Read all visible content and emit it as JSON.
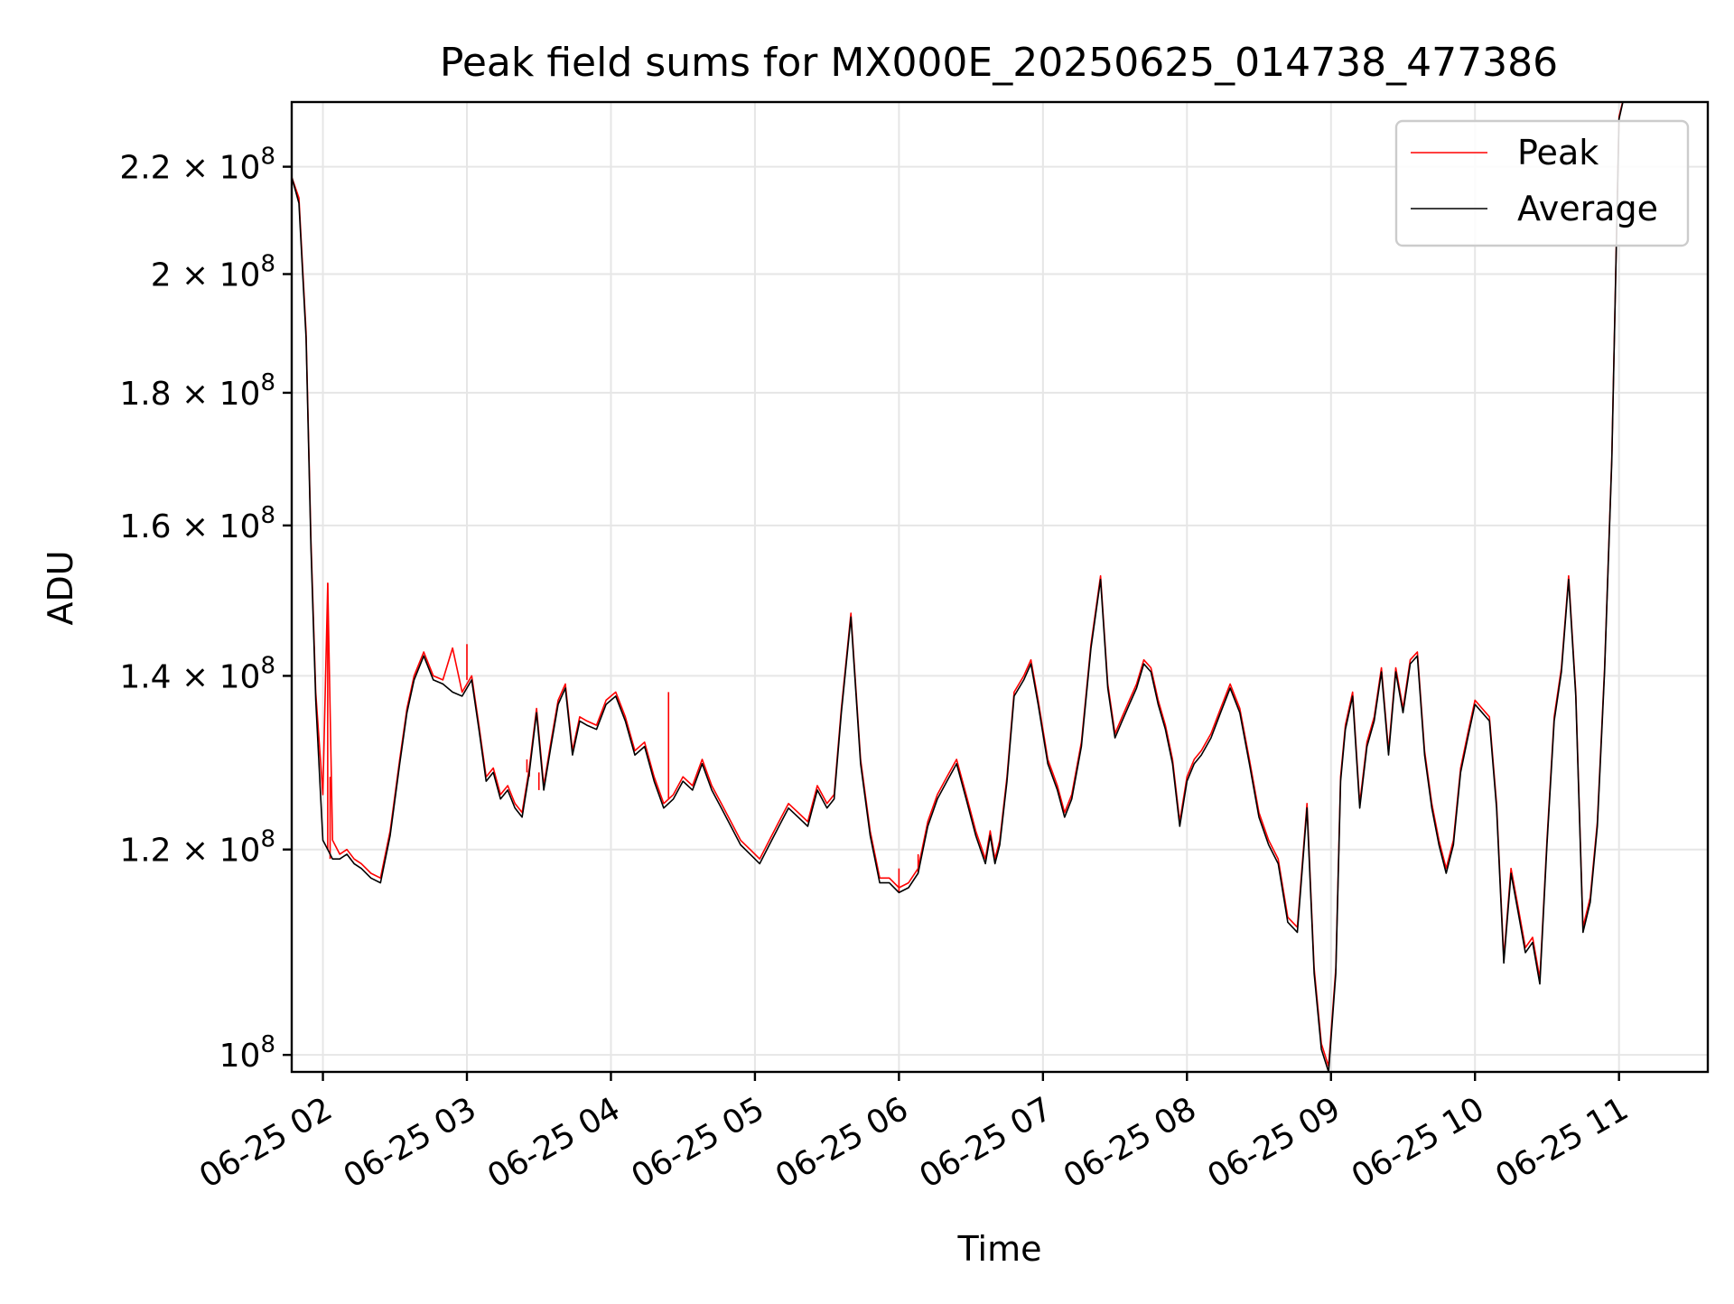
{
  "chart_data": {
    "type": "line",
    "title": "Peak field sums for MX000E_20250625_014738_477386",
    "xlabel": "Time",
    "ylabel": "ADU",
    "yscale": "log",
    "grid": true,
    "legend_position": "top-right",
    "xlim": [
      "2025-06-25 01:47",
      "2025-06-25 11:37"
    ],
    "ylim": [
      98500000,
      233000000
    ],
    "x_ticks": [
      {
        "value": "2025-06-25 02:00",
        "label": "06-25 02"
      },
      {
        "value": "2025-06-25 03:00",
        "label": "06-25 03"
      },
      {
        "value": "2025-06-25 04:00",
        "label": "06-25 04"
      },
      {
        "value": "2025-06-25 05:00",
        "label": "06-25 05"
      },
      {
        "value": "2025-06-25 06:00",
        "label": "06-25 06"
      },
      {
        "value": "2025-06-25 07:00",
        "label": "06-25 07"
      },
      {
        "value": "2025-06-25 08:00",
        "label": "06-25 08"
      },
      {
        "value": "2025-06-25 09:00",
        "label": "06-25 09"
      },
      {
        "value": "2025-06-25 10:00",
        "label": "06-25 10"
      },
      {
        "value": "2025-06-25 11:00",
        "label": "06-25 11"
      }
    ],
    "y_ticks": [
      {
        "value": 100000000,
        "mant": "",
        "exp": "8"
      },
      {
        "value": 120000000,
        "mant": "1.2",
        "exp": "8"
      },
      {
        "value": 140000000,
        "mant": "1.4",
        "exp": "8"
      },
      {
        "value": 160000000,
        "mant": "1.6",
        "exp": "8"
      },
      {
        "value": 180000000,
        "mant": "1.8",
        "exp": "8"
      },
      {
        "value": 200000000,
        "mant": "2",
        "exp": "8"
      },
      {
        "value": 220000000,
        "mant": "2.2",
        "exp": "8"
      }
    ],
    "series": [
      {
        "name": "Peak",
        "color": "#ff0000"
      },
      {
        "name": "Average",
        "color": "#000000"
      }
    ],
    "x": [
      "2025-06-25 01:47",
      "2025-06-25 01:50",
      "2025-06-25 01:53",
      "2025-06-25 01:55",
      "2025-06-25 01:57",
      "2025-06-25 02:00",
      "2025-06-25 02:02",
      "2025-06-25 02:04",
      "2025-06-25 02:07",
      "2025-06-25 02:10",
      "2025-06-25 02:13",
      "2025-06-25 02:16",
      "2025-06-25 02:20",
      "2025-06-25 02:24",
      "2025-06-25 02:28",
      "2025-06-25 02:32",
      "2025-06-25 02:35",
      "2025-06-25 02:38",
      "2025-06-25 02:42",
      "2025-06-25 02:46",
      "2025-06-25 02:50",
      "2025-06-25 02:54",
      "2025-06-25 02:58",
      "2025-06-25 03:02",
      "2025-06-25 03:05",
      "2025-06-25 03:08",
      "2025-06-25 03:11",
      "2025-06-25 03:14",
      "2025-06-25 03:17",
      "2025-06-25 03:20",
      "2025-06-25 03:23",
      "2025-06-25 03:26",
      "2025-06-25 03:29",
      "2025-06-25 03:32",
      "2025-06-25 03:35",
      "2025-06-25 03:38",
      "2025-06-25 03:41",
      "2025-06-25 03:44",
      "2025-06-25 03:47",
      "2025-06-25 03:50",
      "2025-06-25 03:54",
      "2025-06-25 03:58",
      "2025-06-25 04:02",
      "2025-06-25 04:06",
      "2025-06-25 04:10",
      "2025-06-25 04:14",
      "2025-06-25 04:18",
      "2025-06-25 04:22",
      "2025-06-25 04:26",
      "2025-06-25 04:30",
      "2025-06-25 04:34",
      "2025-06-25 04:38",
      "2025-06-25 04:42",
      "2025-06-25 04:46",
      "2025-06-25 04:50",
      "2025-06-25 04:54",
      "2025-06-25 04:58",
      "2025-06-25 05:02",
      "2025-06-25 05:06",
      "2025-06-25 05:10",
      "2025-06-25 05:14",
      "2025-06-25 05:18",
      "2025-06-25 05:22",
      "2025-06-25 05:26",
      "2025-06-25 05:30",
      "2025-06-25 05:33",
      "2025-06-25 05:36",
      "2025-06-25 05:40",
      "2025-06-25 05:44",
      "2025-06-25 05:48",
      "2025-06-25 05:52",
      "2025-06-25 05:56",
      "2025-06-25 06:00",
      "2025-06-25 06:04",
      "2025-06-25 06:08",
      "2025-06-25 06:12",
      "2025-06-25 06:16",
      "2025-06-25 06:20",
      "2025-06-25 06:24",
      "2025-06-25 06:28",
      "2025-06-25 06:32",
      "2025-06-25 06:36",
      "2025-06-25 06:38",
      "2025-06-25 06:40",
      "2025-06-25 06:42",
      "2025-06-25 06:45",
      "2025-06-25 06:48",
      "2025-06-25 06:52",
      "2025-06-25 06:55",
      "2025-06-25 06:58",
      "2025-06-25 07:02",
      "2025-06-25 07:06",
      "2025-06-25 07:09",
      "2025-06-25 07:12",
      "2025-06-25 07:16",
      "2025-06-25 07:20",
      "2025-06-25 07:24",
      "2025-06-25 07:27",
      "2025-06-25 07:30",
      "2025-06-25 07:33",
      "2025-06-25 07:36",
      "2025-06-25 07:39",
      "2025-06-25 07:42",
      "2025-06-25 07:45",
      "2025-06-25 07:48",
      "2025-06-25 07:51",
      "2025-06-25 07:54",
      "2025-06-25 07:57",
      "2025-06-25 08:00",
      "2025-06-25 08:03",
      "2025-06-25 08:06",
      "2025-06-25 08:10",
      "2025-06-25 08:14",
      "2025-06-25 08:18",
      "2025-06-25 08:22",
      "2025-06-25 08:26",
      "2025-06-25 08:30",
      "2025-06-25 08:34",
      "2025-06-25 08:38",
      "2025-06-25 08:42",
      "2025-06-25 08:46",
      "2025-06-25 08:50",
      "2025-06-25 08:53",
      "2025-06-25 08:56",
      "2025-06-25 08:59",
      "2025-06-25 09:02",
      "2025-06-25 09:04",
      "2025-06-25 09:06",
      "2025-06-25 09:09",
      "2025-06-25 09:12",
      "2025-06-25 09:15",
      "2025-06-25 09:18",
      "2025-06-25 09:21",
      "2025-06-25 09:24",
      "2025-06-25 09:27",
      "2025-06-25 09:30",
      "2025-06-25 09:33",
      "2025-06-25 09:36",
      "2025-06-25 09:39",
      "2025-06-25 09:42",
      "2025-06-25 09:45",
      "2025-06-25 09:48",
      "2025-06-25 09:51",
      "2025-06-25 09:54",
      "2025-06-25 09:57",
      "2025-06-25 10:00",
      "2025-06-25 10:03",
      "2025-06-25 10:06",
      "2025-06-25 10:09",
      "2025-06-25 10:12",
      "2025-06-25 10:15",
      "2025-06-25 10:18",
      "2025-06-25 10:21",
      "2025-06-25 10:24",
      "2025-06-25 10:27",
      "2025-06-25 10:30",
      "2025-06-25 10:33",
      "2025-06-25 10:36",
      "2025-06-25 10:39",
      "2025-06-25 10:42",
      "2025-06-25 10:45",
      "2025-06-25 10:48",
      "2025-06-25 10:51",
      "2025-06-25 10:54",
      "2025-06-25 10:57",
      "2025-06-25 11:00",
      "2025-06-25 11:03",
      "2025-06-25 11:06",
      "2025-06-25 11:09",
      "2025-06-25 11:12",
      "2025-06-25 11:15",
      "2025-06-25 11:18",
      "2025-06-25 11:21",
      "2025-06-25 11:24",
      "2025-06-25 11:27",
      "2025-06-25 11:30",
      "2025-06-25 11:33",
      "2025-06-25 11:37"
    ],
    "peak_values": [
      218000000,
      214000000,
      190000000,
      158000000,
      138000000,
      126000000,
      152000000,
      121000000,
      119500000,
      120000000,
      119000000,
      118500000,
      117500000,
      117000000,
      122000000,
      130000000,
      136000000,
      140000000,
      143000000,
      140000000,
      139500000,
      143500000,
      138000000,
      140000000,
      134000000,
      128000000,
      129000000,
      126000000,
      127000000,
      125000000,
      124000000,
      129000000,
      136000000,
      127000000,
      132000000,
      137000000,
      139000000,
      131000000,
      135000000,
      134500000,
      134000000,
      137000000,
      138000000,
      135000000,
      131000000,
      132000000,
      128000000,
      125000000,
      126000000,
      128000000,
      127000000,
      130000000,
      127000000,
      125000000,
      123000000,
      121000000,
      120000000,
      119000000,
      121000000,
      123000000,
      125000000,
      124000000,
      123000000,
      127000000,
      125000000,
      126000000,
      136000000,
      148000000,
      130000000,
      122000000,
      117000000,
      117000000,
      116000000,
      116500000,
      118000000,
      123000000,
      126000000,
      128000000,
      130000000,
      126000000,
      122000000,
      119000000,
      122000000,
      119000000,
      121000000,
      128000000,
      138000000,
      140000000,
      142000000,
      137000000,
      130000000,
      127000000,
      124000000,
      126000000,
      132000000,
      144000000,
      153000000,
      139000000,
      133000000,
      135000000,
      137000000,
      139000000,
      142000000,
      141000000,
      137000000,
      134000000,
      130000000,
      123000000,
      128000000,
      130000000,
      131000000,
      133000000,
      136000000,
      139000000,
      136000000,
      130000000,
      124000000,
      121000000,
      119000000,
      113000000,
      112000000,
      125000000,
      108000000,
      101000000,
      99000000,
      108000000,
      128000000,
      134000000,
      138000000,
      125000000,
      132000000,
      135000000,
      141000000,
      131000000,
      141000000,
      136000000,
      142000000,
      143000000,
      131000000,
      125000000,
      121000000,
      118000000,
      121000000,
      129000000,
      133000000,
      137000000,
      136000000,
      135000000,
      125000000,
      109000000,
      118000000,
      114000000,
      110000000,
      111000000,
      107000000,
      121000000,
      135000000,
      141000000,
      153000000,
      138000000,
      112000000,
      115000000,
      123000000,
      141000000,
      170000000,
      230000000,
      236000000
    ],
    "average_values": [
      218000000,
      213000000,
      189000000,
      157000000,
      137000000,
      121000000,
      120000000,
      119000000,
      119000000,
      119500000,
      118500000,
      118000000,
      117000000,
      116500000,
      121500000,
      129500000,
      135500000,
      139500000,
      142500000,
      139500000,
      139000000,
      138000000,
      137500000,
      139500000,
      133500000,
      127500000,
      128500000,
      125500000,
      126500000,
      124500000,
      123500000,
      128500000,
      135500000,
      126500000,
      131500000,
      136500000,
      138500000,
      130500000,
      134500000,
      134000000,
      133500000,
      136500000,
      137500000,
      134500000,
      130500000,
      131500000,
      127500000,
      124500000,
      125500000,
      127500000,
      126500000,
      129500000,
      126500000,
      124500000,
      122500000,
      120500000,
      119500000,
      118500000,
      120500000,
      122500000,
      124500000,
      123500000,
      122500000,
      126500000,
      124500000,
      125500000,
      135500000,
      147500000,
      129500000,
      121500000,
      116500000,
      116500000,
      115500000,
      116000000,
      117500000,
      122500000,
      125500000,
      127500000,
      129500000,
      125500000,
      121500000,
      118500000,
      121500000,
      118500000,
      120500000,
      127500000,
      137500000,
      139500000,
      141500000,
      136500000,
      129500000,
      126500000,
      123500000,
      125500000,
      131500000,
      143500000,
      152500000,
      138500000,
      132500000,
      134500000,
      136500000,
      138500000,
      141500000,
      140500000,
      136500000,
      133500000,
      129500000,
      122500000,
      127500000,
      129500000,
      130500000,
      132500000,
      135500000,
      138500000,
      135500000,
      129500000,
      123500000,
      120500000,
      118500000,
      112500000,
      111500000,
      124500000,
      107500000,
      100500000,
      98500000,
      107500000,
      127500000,
      133500000,
      137500000,
      124500000,
      131500000,
      134500000,
      140500000,
      130500000,
      140500000,
      135500000,
      141500000,
      142500000,
      130500000,
      124500000,
      120500000,
      117500000,
      120500000,
      128500000,
      132500000,
      136500000,
      135500000,
      134500000,
      124500000,
      108500000,
      117500000,
      113500000,
      109500000,
      110500000,
      106500000,
      120500000,
      134500000,
      140500000,
      152500000,
      137500000,
      111500000,
      114500000,
      122500000,
      140500000,
      169500000,
      229500000,
      236000000
    ],
    "spikes": [
      {
        "x": "2025-06-25 02:02",
        "value": 152000000
      },
      {
        "x": "2025-06-25 02:03",
        "value": 128000000
      },
      {
        "x": "2025-06-25 03:00",
        "value": 144000000
      },
      {
        "x": "2025-06-25 03:25",
        "value": 130000000
      },
      {
        "x": "2025-06-25 03:26",
        "value": 128000000
      },
      {
        "x": "2025-06-25 03:30",
        "value": 128500000
      },
      {
        "x": "2025-06-25 04:24",
        "value": 138000000
      },
      {
        "x": "2025-06-25 06:00",
        "value": 118000000
      },
      {
        "x": "2025-06-25 06:08",
        "value": 119500000
      }
    ]
  }
}
